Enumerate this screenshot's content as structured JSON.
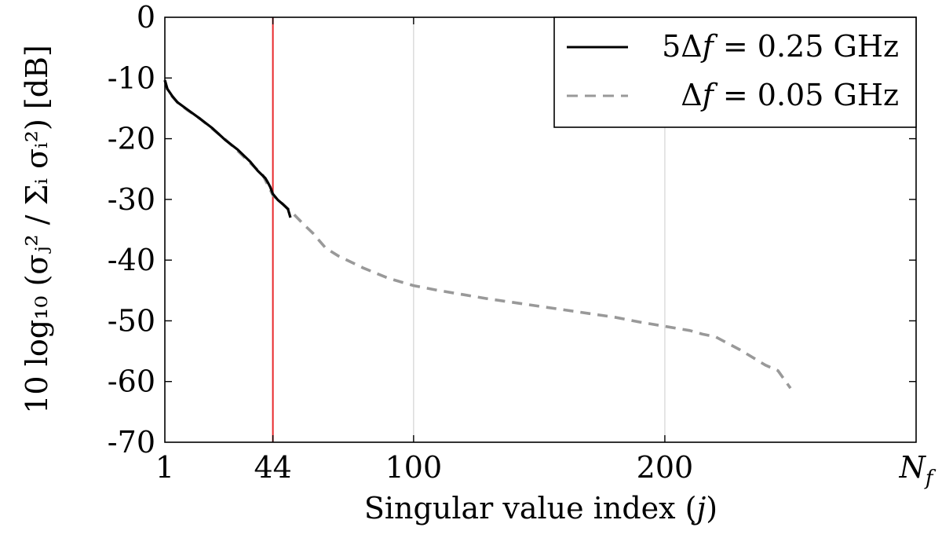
{
  "chart_data": {
    "type": "line",
    "xlabel_prefix": "Singular value index (",
    "xlabel_var": "j",
    "xlabel_suffix": ")",
    "ylabel": "10 log₁₀ (σⱼ² / Σᵢ σᵢ²) [dB]",
    "xlim": [
      1,
      300
    ],
    "ylim": [
      -70,
      0
    ],
    "x_ticks": [
      {
        "value": 1,
        "label": "1"
      },
      {
        "value": 44,
        "label": "44"
      },
      {
        "value": 100,
        "label": "100"
      },
      {
        "value": 200,
        "label": "200"
      },
      {
        "value": 300,
        "label": "N",
        "sub": "f"
      }
    ],
    "y_ticks": [
      0,
      -10,
      -20,
      -30,
      -40,
      -50,
      -60,
      -70
    ],
    "y_tick_labels": [
      "0",
      "-10",
      "-20",
      "-30",
      "-40",
      "-50",
      "-60",
      "-70"
    ],
    "grid": "vertical",
    "vline": {
      "x": 44,
      "color": "#e8282b"
    },
    "legend_position": "top-right",
    "series": [
      {
        "name": "5Δf = 0.25 GHz",
        "label_prefix": "5Δ",
        "label_var": "f",
        "label_suffix": " = 0.25 GHz",
        "color": "#000000",
        "dash": "solid",
        "x": [
          1,
          2,
          4,
          6,
          10,
          15,
          20,
          25,
          30,
          35,
          38,
          41,
          42,
          43,
          44,
          46,
          48,
          50,
          51
        ],
        "y": [
          -10.4,
          -11.8,
          -13.0,
          -14.0,
          -15.2,
          -16.7,
          -18.3,
          -20.2,
          -21.8,
          -23.8,
          -25.3,
          -26.5,
          -27.2,
          -28.0,
          -29.1,
          -30.1,
          -30.8,
          -31.6,
          -33.0
        ]
      },
      {
        "name": "Δf = 0.05 GHz",
        "label_prefix": "Δ",
        "label_var": "f",
        "label_suffix": " = 0.05 GHz",
        "color": "#999999",
        "dash": "dashed",
        "x": [
          1,
          2,
          4,
          6,
          10,
          15,
          20,
          25,
          30,
          35,
          40,
          44,
          48,
          52,
          56,
          60,
          65,
          70,
          80,
          90,
          100,
          110,
          120,
          130,
          140,
          150,
          160,
          170,
          180,
          190,
          200,
          210,
          215,
          220,
          230,
          240,
          245,
          250
        ],
        "y": [
          -10.3,
          -11.9,
          -13.1,
          -14.0,
          -15.3,
          -16.7,
          -18.4,
          -20.1,
          -22.0,
          -24.0,
          -26.0,
          -29.3,
          -30.8,
          -32.3,
          -34.0,
          -35.6,
          -38.0,
          -39.3,
          -41.3,
          -43.0,
          -44.2,
          -45.0,
          -45.7,
          -46.4,
          -47.0,
          -47.6,
          -48.2,
          -48.8,
          -49.4,
          -50.2,
          -50.9,
          -51.6,
          -52.2,
          -52.6,
          -54.8,
          -57.3,
          -58.2,
          -61.1
        ]
      }
    ]
  }
}
